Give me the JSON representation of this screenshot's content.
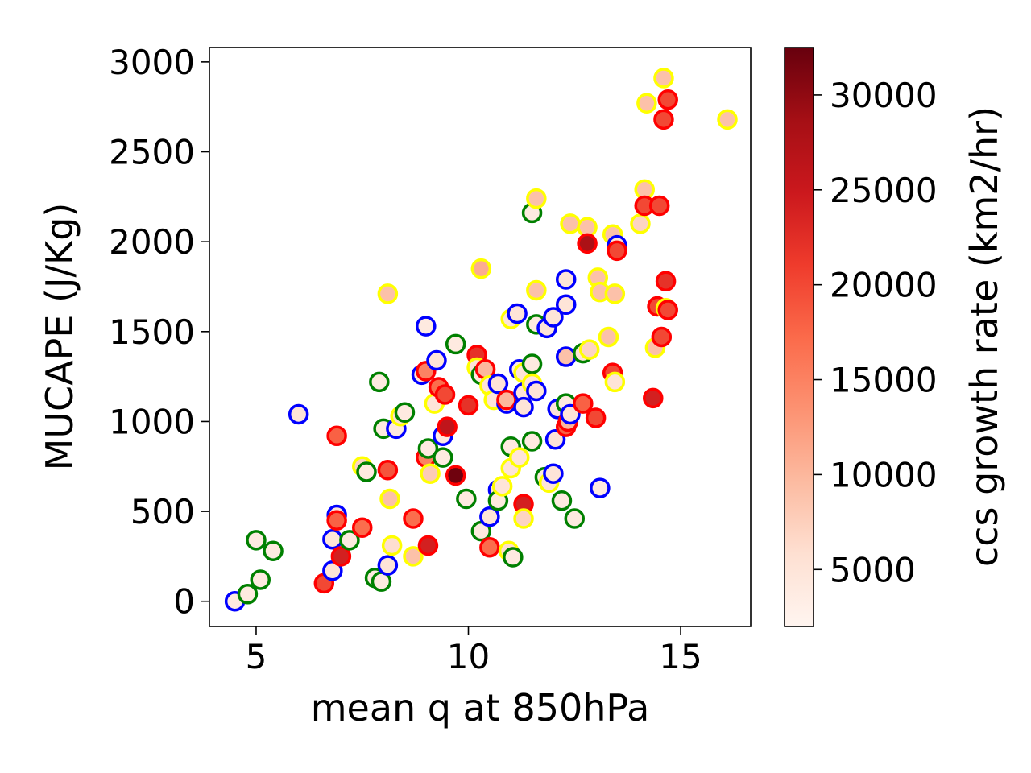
{
  "chart_data": {
    "type": "scatter",
    "xlabel": "mean q at 850hPa",
    "ylabel": "MUCAPE (J/Kg)",
    "xlim": [
      3.9,
      16.65
    ],
    "ylim": [
      -140,
      3080
    ],
    "x_ticks": [
      5,
      10,
      15
    ],
    "y_ticks": [
      0,
      500,
      1000,
      1500,
      2000,
      2500,
      3000
    ],
    "x_tick_labels": [
      "5",
      "10",
      "15"
    ],
    "y_tick_labels": [
      "0",
      "500",
      "1000",
      "1500",
      "2000",
      "2500",
      "3000"
    ],
    "colorbar": {
      "label": "ccs growth rate (km2/hr)",
      "colormap": "Reds",
      "range": [
        2000,
        32500
      ],
      "ticks": [
        5000,
        10000,
        15000,
        20000,
        25000,
        30000
      ],
      "tick_labels": [
        "5000",
        "10000",
        "15000",
        "20000",
        "25000",
        "30000"
      ]
    },
    "edge_colors": {
      "blue": "#0000ff",
      "green": "#008000",
      "red": "#ff0000",
      "yellow": "#ffff00"
    },
    "points": [
      {
        "x": 4.5,
        "y": 0,
        "c": 4000,
        "edge": "blue"
      },
      {
        "x": 4.8,
        "y": 40,
        "c": 4000,
        "edge": "green"
      },
      {
        "x": 5.0,
        "y": 340,
        "c": 4000,
        "edge": "green"
      },
      {
        "x": 5.1,
        "y": 120,
        "c": 4000,
        "edge": "green"
      },
      {
        "x": 5.4,
        "y": 280,
        "c": 4000,
        "edge": "green"
      },
      {
        "x": 6.0,
        "y": 1040,
        "c": 5000,
        "edge": "blue"
      },
      {
        "x": 6.6,
        "y": 100,
        "c": 20000,
        "edge": "red"
      },
      {
        "x": 6.8,
        "y": 170,
        "c": 5000,
        "edge": "blue"
      },
      {
        "x": 6.8,
        "y": 345,
        "c": 5000,
        "edge": "blue"
      },
      {
        "x": 6.9,
        "y": 480,
        "c": 5000,
        "edge": "blue"
      },
      {
        "x": 6.9,
        "y": 920,
        "c": 18000,
        "edge": "red"
      },
      {
        "x": 6.9,
        "y": 450,
        "c": 18000,
        "edge": "red"
      },
      {
        "x": 7.0,
        "y": 250,
        "c": 24000,
        "edge": "red"
      },
      {
        "x": 7.2,
        "y": 340,
        "c": 4000,
        "edge": "green"
      },
      {
        "x": 7.5,
        "y": 410,
        "c": 17000,
        "edge": "red"
      },
      {
        "x": 7.5,
        "y": 750,
        "c": 7000,
        "edge": "yellow"
      },
      {
        "x": 7.6,
        "y": 720,
        "c": 4000,
        "edge": "green"
      },
      {
        "x": 7.8,
        "y": 130,
        "c": 4000,
        "edge": "green"
      },
      {
        "x": 7.9,
        "y": 1220,
        "c": 4000,
        "edge": "green"
      },
      {
        "x": 7.95,
        "y": 110,
        "c": 4000,
        "edge": "green"
      },
      {
        "x": 8.0,
        "y": 960,
        "c": 4000,
        "edge": "green"
      },
      {
        "x": 8.1,
        "y": 1710,
        "c": 9000,
        "edge": "yellow"
      },
      {
        "x": 8.1,
        "y": 730,
        "c": 19000,
        "edge": "red"
      },
      {
        "x": 8.1,
        "y": 200,
        "c": 5000,
        "edge": "blue"
      },
      {
        "x": 8.15,
        "y": 570,
        "c": 9000,
        "edge": "yellow"
      },
      {
        "x": 8.2,
        "y": 310,
        "c": 6000,
        "edge": "yellow"
      },
      {
        "x": 8.3,
        "y": 960,
        "c": 4000,
        "edge": "blue"
      },
      {
        "x": 8.4,
        "y": 1030,
        "c": 6000,
        "edge": "yellow"
      },
      {
        "x": 8.5,
        "y": 1050,
        "c": 4000,
        "edge": "green"
      },
      {
        "x": 8.7,
        "y": 250,
        "c": 9000,
        "edge": "yellow"
      },
      {
        "x": 8.7,
        "y": 460,
        "c": 17000,
        "edge": "red"
      },
      {
        "x": 8.9,
        "y": 1260,
        "c": 5000,
        "edge": "blue"
      },
      {
        "x": 9.0,
        "y": 1280,
        "c": 15000,
        "edge": "red"
      },
      {
        "x": 9.0,
        "y": 1530,
        "c": 4000,
        "edge": "blue"
      },
      {
        "x": 9.0,
        "y": 800,
        "c": 15000,
        "edge": "red"
      },
      {
        "x": 9.05,
        "y": 850,
        "c": 4000,
        "edge": "green"
      },
      {
        "x": 9.05,
        "y": 310,
        "c": 24000,
        "edge": "red"
      },
      {
        "x": 9.1,
        "y": 710,
        "c": 8000,
        "edge": "yellow"
      },
      {
        "x": 9.2,
        "y": 1100,
        "c": 5000,
        "edge": "yellow"
      },
      {
        "x": 9.25,
        "y": 1340,
        "c": 5000,
        "edge": "blue"
      },
      {
        "x": 9.3,
        "y": 1190,
        "c": 17000,
        "edge": "red"
      },
      {
        "x": 9.4,
        "y": 920,
        "c": 4000,
        "edge": "blue"
      },
      {
        "x": 9.4,
        "y": 800,
        "c": 4000,
        "edge": "green"
      },
      {
        "x": 9.45,
        "y": 1150,
        "c": 20000,
        "edge": "red"
      },
      {
        "x": 9.5,
        "y": 970,
        "c": 26000,
        "edge": "red"
      },
      {
        "x": 9.7,
        "y": 1430,
        "c": 4000,
        "edge": "green"
      },
      {
        "x": 9.7,
        "y": 700,
        "c": 32000,
        "edge": "red"
      },
      {
        "x": 9.95,
        "y": 570,
        "c": 4000,
        "edge": "green"
      },
      {
        "x": 10.0,
        "y": 1090,
        "c": 22000,
        "edge": "red"
      },
      {
        "x": 10.2,
        "y": 1370,
        "c": 22000,
        "edge": "red"
      },
      {
        "x": 10.2,
        "y": 1300,
        "c": 5000,
        "edge": "yellow"
      },
      {
        "x": 10.3,
        "y": 1260,
        "c": 4000,
        "edge": "green"
      },
      {
        "x": 10.3,
        "y": 1850,
        "c": 11000,
        "edge": "yellow"
      },
      {
        "x": 10.3,
        "y": 390,
        "c": 4000,
        "edge": "green"
      },
      {
        "x": 10.4,
        "y": 1290,
        "c": 10000,
        "edge": "red"
      },
      {
        "x": 10.5,
        "y": 1200,
        "c": 5000,
        "edge": "yellow"
      },
      {
        "x": 10.5,
        "y": 470,
        "c": 5000,
        "edge": "blue"
      },
      {
        "x": 10.5,
        "y": 300,
        "c": 17000,
        "edge": "red"
      },
      {
        "x": 10.6,
        "y": 1120,
        "c": 5000,
        "edge": "yellow"
      },
      {
        "x": 10.7,
        "y": 1210,
        "c": 5000,
        "edge": "blue"
      },
      {
        "x": 10.7,
        "y": 620,
        "c": 5000,
        "edge": "blue"
      },
      {
        "x": 10.7,
        "y": 560,
        "c": 4000,
        "edge": "green"
      },
      {
        "x": 10.8,
        "y": 640,
        "c": 5000,
        "edge": "yellow"
      },
      {
        "x": 10.9,
        "y": 1100,
        "c": 5000,
        "edge": "blue"
      },
      {
        "x": 10.9,
        "y": 1120,
        "c": 10000,
        "edge": "red"
      },
      {
        "x": 10.95,
        "y": 280,
        "c": 6000,
        "edge": "yellow"
      },
      {
        "x": 11.0,
        "y": 1570,
        "c": 5000,
        "edge": "yellow"
      },
      {
        "x": 11.0,
        "y": 740,
        "c": 5000,
        "edge": "yellow"
      },
      {
        "x": 11.0,
        "y": 860,
        "c": 4000,
        "edge": "green"
      },
      {
        "x": 11.05,
        "y": 245,
        "c": 4000,
        "edge": "green"
      },
      {
        "x": 11.15,
        "y": 1600,
        "c": 5000,
        "edge": "blue"
      },
      {
        "x": 11.2,
        "y": 1290,
        "c": 4000,
        "edge": "blue"
      },
      {
        "x": 11.2,
        "y": 800,
        "c": 5000,
        "edge": "yellow"
      },
      {
        "x": 11.3,
        "y": 1270,
        "c": 5000,
        "edge": "yellow"
      },
      {
        "x": 11.3,
        "y": 1160,
        "c": 5000,
        "edge": "blue"
      },
      {
        "x": 11.3,
        "y": 1080,
        "c": 5000,
        "edge": "blue"
      },
      {
        "x": 11.3,
        "y": 540,
        "c": 24000,
        "edge": "red"
      },
      {
        "x": 11.3,
        "y": 460,
        "c": 7000,
        "edge": "yellow"
      },
      {
        "x": 11.5,
        "y": 1320,
        "c": 4000,
        "edge": "green"
      },
      {
        "x": 11.5,
        "y": 1210,
        "c": 5000,
        "edge": "yellow"
      },
      {
        "x": 11.5,
        "y": 890,
        "c": 4000,
        "edge": "green"
      },
      {
        "x": 11.5,
        "y": 2160,
        "c": 4000,
        "edge": "green"
      },
      {
        "x": 11.6,
        "y": 2240,
        "c": 9000,
        "edge": "yellow"
      },
      {
        "x": 11.6,
        "y": 1730,
        "c": 9000,
        "edge": "yellow"
      },
      {
        "x": 11.6,
        "y": 1540,
        "c": 4000,
        "edge": "green"
      },
      {
        "x": 11.6,
        "y": 1170,
        "c": 5000,
        "edge": "blue"
      },
      {
        "x": 11.8,
        "y": 690,
        "c": 4000,
        "edge": "green"
      },
      {
        "x": 11.85,
        "y": 1520,
        "c": 5000,
        "edge": "blue"
      },
      {
        "x": 11.9,
        "y": 660,
        "c": 5000,
        "edge": "yellow"
      },
      {
        "x": 12.0,
        "y": 1580,
        "c": 5000,
        "edge": "blue"
      },
      {
        "x": 12.0,
        "y": 710,
        "c": 5000,
        "edge": "blue"
      },
      {
        "x": 12.05,
        "y": 900,
        "c": 5000,
        "edge": "blue"
      },
      {
        "x": 12.1,
        "y": 1070,
        "c": 5000,
        "edge": "blue"
      },
      {
        "x": 12.2,
        "y": 560,
        "c": 4000,
        "edge": "green"
      },
      {
        "x": 12.3,
        "y": 1100,
        "c": 4000,
        "edge": "green"
      },
      {
        "x": 12.3,
        "y": 1790,
        "c": 5000,
        "edge": "blue"
      },
      {
        "x": 12.3,
        "y": 1650,
        "c": 5000,
        "edge": "blue"
      },
      {
        "x": 12.3,
        "y": 1360,
        "c": 9000,
        "edge": "blue"
      },
      {
        "x": 12.3,
        "y": 970,
        "c": 18000,
        "edge": "red"
      },
      {
        "x": 12.35,
        "y": 1000,
        "c": 10000,
        "edge": "red"
      },
      {
        "x": 12.4,
        "y": 2100,
        "c": 9000,
        "edge": "yellow"
      },
      {
        "x": 12.4,
        "y": 1040,
        "c": 5000,
        "edge": "blue"
      },
      {
        "x": 12.5,
        "y": 460,
        "c": 4000,
        "edge": "green"
      },
      {
        "x": 12.7,
        "y": 1380,
        "c": 5000,
        "edge": "green"
      },
      {
        "x": 12.7,
        "y": 1100,
        "c": 18000,
        "edge": "red"
      },
      {
        "x": 12.8,
        "y": 2080,
        "c": 9000,
        "edge": "yellow"
      },
      {
        "x": 12.8,
        "y": 1990,
        "c": 28000,
        "edge": "red"
      },
      {
        "x": 12.85,
        "y": 1400,
        "c": 7000,
        "edge": "yellow"
      },
      {
        "x": 13.0,
        "y": 1020,
        "c": 20000,
        "edge": "red"
      },
      {
        "x": 13.05,
        "y": 1800,
        "c": 9000,
        "edge": "yellow"
      },
      {
        "x": 13.1,
        "y": 1720,
        "c": 9000,
        "edge": "yellow"
      },
      {
        "x": 13.1,
        "y": 630,
        "c": 4000,
        "edge": "blue"
      },
      {
        "x": 13.3,
        "y": 1470,
        "c": 9000,
        "edge": "yellow"
      },
      {
        "x": 13.4,
        "y": 2040,
        "c": 9000,
        "edge": "yellow"
      },
      {
        "x": 13.4,
        "y": 1270,
        "c": 20000,
        "edge": "red"
      },
      {
        "x": 13.45,
        "y": 1220,
        "c": 5000,
        "edge": "yellow"
      },
      {
        "x": 13.45,
        "y": 1710,
        "c": 9000,
        "edge": "yellow"
      },
      {
        "x": 13.5,
        "y": 1980,
        "c": 5000,
        "edge": "blue"
      },
      {
        "x": 13.5,
        "y": 1950,
        "c": 20000,
        "edge": "red"
      },
      {
        "x": 14.05,
        "y": 2100,
        "c": 7000,
        "edge": "yellow"
      },
      {
        "x": 14.15,
        "y": 2290,
        "c": 9000,
        "edge": "yellow"
      },
      {
        "x": 14.15,
        "y": 2200,
        "c": 20000,
        "edge": "red"
      },
      {
        "x": 14.2,
        "y": 2770,
        "c": 9000,
        "edge": "yellow"
      },
      {
        "x": 14.35,
        "y": 1130,
        "c": 24000,
        "edge": "red"
      },
      {
        "x": 14.4,
        "y": 1410,
        "c": 9000,
        "edge": "yellow"
      },
      {
        "x": 14.45,
        "y": 1640,
        "c": 20000,
        "edge": "red"
      },
      {
        "x": 14.5,
        "y": 2200,
        "c": 20000,
        "edge": "red"
      },
      {
        "x": 14.55,
        "y": 1470,
        "c": 20000,
        "edge": "red"
      },
      {
        "x": 14.6,
        "y": 2910,
        "c": 9000,
        "edge": "yellow"
      },
      {
        "x": 14.6,
        "y": 2680,
        "c": 20000,
        "edge": "red"
      },
      {
        "x": 14.65,
        "y": 1630,
        "c": 9000,
        "edge": "yellow"
      },
      {
        "x": 14.65,
        "y": 1780,
        "c": 22000,
        "edge": "red"
      },
      {
        "x": 14.7,
        "y": 1620,
        "c": 20000,
        "edge": "red"
      },
      {
        "x": 14.7,
        "y": 2790,
        "c": 20000,
        "edge": "red"
      },
      {
        "x": 16.1,
        "y": 2680,
        "c": 9000,
        "edge": "yellow"
      }
    ]
  }
}
